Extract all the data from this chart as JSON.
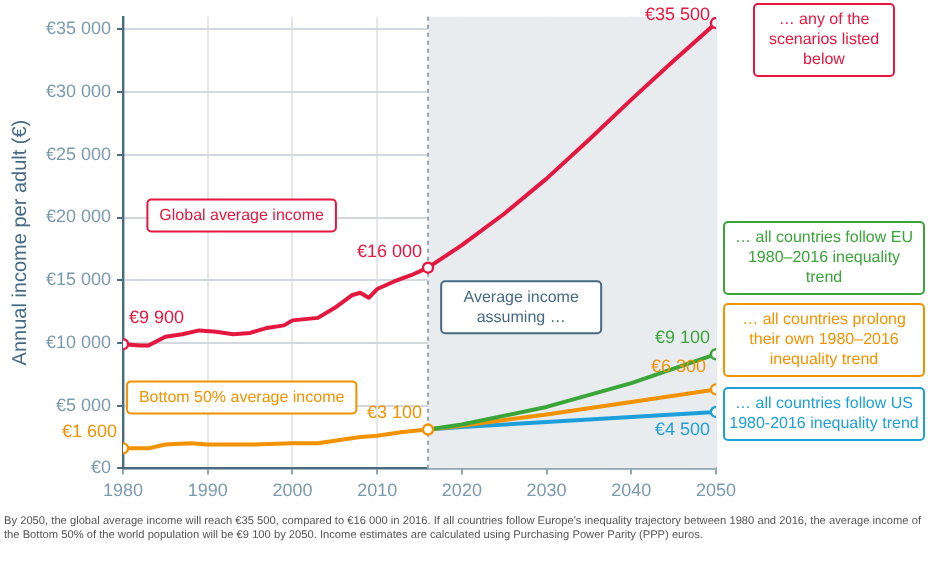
{
  "chart_data": {
    "type": "line",
    "ylabel": "Annual income per adult (€)",
    "xlim": [
      1980,
      2050
    ],
    "xticks": [
      1980,
      1990,
      2000,
      2010,
      2020,
      2030,
      2040,
      2050
    ],
    "ylim": [
      0,
      36000
    ],
    "yticks": [
      {
        "value": 0,
        "label": "€0"
      },
      {
        "value": 5000,
        "label": "€5 000"
      },
      {
        "value": 10000,
        "label": "€10 000"
      },
      {
        "value": 15000,
        "label": "€15 000"
      },
      {
        "value": 20000,
        "label": "€20 000"
      },
      {
        "value": 25000,
        "label": "€25 000"
      },
      {
        "value": 30000,
        "label": "€30 000"
      },
      {
        "value": 35000,
        "label": "€35 000"
      }
    ],
    "grid": true,
    "legend": false,
    "line_style": "solid",
    "series": [
      {
        "name": "Global average income",
        "color": "#e5173f",
        "x": [
          1980,
          1982,
          1983,
          1985,
          1987,
          1989,
          1991,
          1993,
          1995,
          1997,
          1999,
          2000,
          2003,
          2005,
          2007,
          2008,
          2009,
          2010,
          2012,
          2014,
          2016,
          2020,
          2025,
          2030,
          2035,
          2040,
          2045,
          2050
        ],
        "values": [
          9900,
          9800,
          9800,
          10500,
          10700,
          11000,
          10900,
          10700,
          10800,
          11200,
          11400,
          11800,
          12000,
          12800,
          13800,
          14000,
          13600,
          14300,
          14900,
          15400,
          16000,
          17800,
          20300,
          23100,
          26200,
          29400,
          32500,
          35500
        ],
        "value_labels": [
          "€9 900",
          null,
          null,
          null,
          null,
          null,
          null,
          null,
          null,
          null,
          null,
          null,
          null,
          null,
          null,
          null,
          null,
          null,
          null,
          null,
          "€16 000",
          null,
          null,
          null,
          null,
          null,
          null,
          "€35 500"
        ]
      },
      {
        "name": "Bottom 50% average income",
        "color": "#f39200",
        "x": [
          1980,
          1983,
          1985,
          1988,
          1990,
          1995,
          2000,
          2003,
          2005,
          2008,
          2010,
          2013,
          2016
        ],
        "values": [
          1600,
          1600,
          1900,
          2000,
          1900,
          1900,
          2000,
          2000,
          2200,
          2500,
          2600,
          2900,
          3100
        ],
        "value_labels": [
          "€1 600",
          null,
          null,
          null,
          null,
          null,
          null,
          null,
          null,
          null,
          null,
          null,
          "€3 100"
        ]
      },
      {
        "name": "… all countries follow EU 1980–2016 inequality trend",
        "color": "#3aa539",
        "x": [
          2016,
          2020,
          2030,
          2040,
          2050
        ],
        "values": [
          3100,
          3500,
          4900,
          6800,
          9100
        ],
        "value_labels": [
          null,
          null,
          null,
          null,
          "€9 100"
        ]
      },
      {
        "name": "… all countries prolong their own 1980–2016 inequality trend",
        "color": "#f39200",
        "x": [
          2016,
          2020,
          2030,
          2040,
          2050
        ],
        "values": [
          3100,
          3400,
          4300,
          5300,
          6300
        ],
        "value_labels": [
          null,
          null,
          null,
          null,
          "€6 300"
        ]
      },
      {
        "name": "… all countries follow US 1980-2016 inequality trend",
        "color": "#1e9fd9",
        "x": [
          2016,
          2020,
          2030,
          2040,
          2050
        ],
        "values": [
          3100,
          3300,
          3700,
          4100,
          4500
        ],
        "value_labels": [
          null,
          null,
          null,
          null,
          "€4 500"
        ]
      }
    ],
    "bands": [
      {
        "axis": "x",
        "from": 2016,
        "to": 2050,
        "color": "#e9ecef"
      }
    ],
    "ref_lines": [
      {
        "axis": "x",
        "value": 2016,
        "color": "#9aa5b0",
        "line_style": "dotted"
      }
    ],
    "annotations": [
      "… any of the scenarios listed below",
      "Average income assuming …",
      "By 2050, the global average income will reach €35 500, compared to €16 000 in 2016. If all countries follow Europe's inequality trajectory between 1980 and 2016, the average income of the Bottom 50% of the world population will be €9 100 by 2050. Income estimates are calculated using Purchasing Power Parity (PPP) euros."
    ]
  }
}
